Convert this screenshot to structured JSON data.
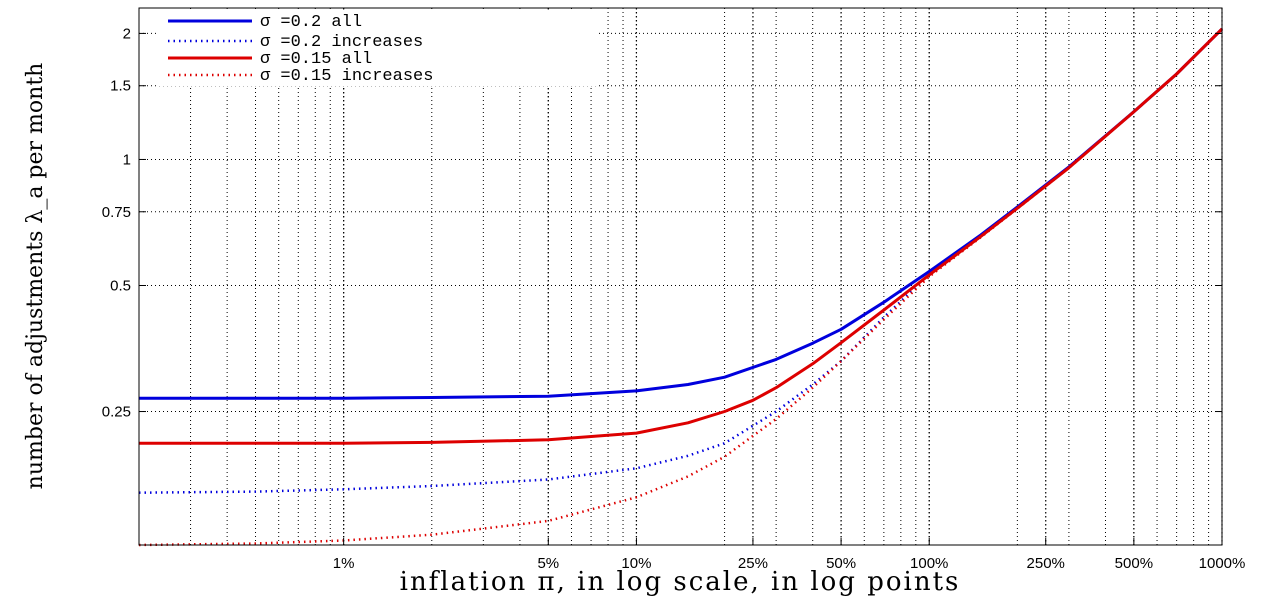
{
  "chart_data": {
    "type": "line",
    "title": "",
    "xlabel": "inflation π, in log scale, in log points",
    "ylabel": "number of adjustments λ_a per month",
    "xscale": "log",
    "yscale": "log",
    "xlim": [
      0.002,
      10
    ],
    "ylim": [
      0.12,
      2.3
    ],
    "grid": true,
    "legend_position": "top-left",
    "x_ticks": [
      {
        "value": 0.01,
        "label": "1%"
      },
      {
        "value": 0.05,
        "label": "5%"
      },
      {
        "value": 0.1,
        "label": "10%"
      },
      {
        "value": 0.25,
        "label": "25%"
      },
      {
        "value": 0.5,
        "label": "50%"
      },
      {
        "value": 1,
        "label": "100%"
      },
      {
        "value": 2.5,
        "label": "250%"
      },
      {
        "value": 5,
        "label": "500%"
      },
      {
        "value": 10,
        "label": "1000%"
      }
    ],
    "y_ticks": [
      {
        "value": 0.25,
        "label": "0.25"
      },
      {
        "value": 0.5,
        "label": "0.5"
      },
      {
        "value": 0.75,
        "label": "0.75"
      },
      {
        "value": 1,
        "label": "1"
      },
      {
        "value": 1.5,
        "label": "1.5"
      },
      {
        "value": 2,
        "label": "2"
      }
    ],
    "series": [
      {
        "name": "σ =0.2 all",
        "color": "#0000dd",
        "style": "solid",
        "x": [
          0.002,
          0.005,
          0.01,
          0.02,
          0.05,
          0.1,
          0.15,
          0.2,
          0.3,
          0.4,
          0.5,
          0.7,
          1,
          1.5,
          2,
          3,
          5,
          7,
          10
        ],
        "y": [
          0.269,
          0.269,
          0.269,
          0.27,
          0.272,
          0.28,
          0.29,
          0.302,
          0.333,
          0.364,
          0.393,
          0.456,
          0.54,
          0.66,
          0.77,
          0.96,
          1.3,
          1.6,
          2.05
        ]
      },
      {
        "name": "σ =0.2 increases",
        "color": "#0000dd",
        "style": "dotted",
        "x": [
          0.002,
          0.005,
          0.01,
          0.02,
          0.05,
          0.1,
          0.15,
          0.2,
          0.3,
          0.4,
          0.5,
          0.7,
          1,
          1.5,
          2,
          3,
          5,
          7,
          10
        ],
        "y": [
          0.16,
          0.161,
          0.163,
          0.166,
          0.172,
          0.183,
          0.196,
          0.21,
          0.25,
          0.29,
          0.33,
          0.42,
          0.53,
          0.655,
          0.765,
          0.955,
          1.3,
          1.6,
          2.05
        ]
      },
      {
        "name": "σ =0.15 all",
        "color": "#dd0000",
        "style": "solid",
        "x": [
          0.002,
          0.005,
          0.01,
          0.02,
          0.05,
          0.1,
          0.15,
          0.2,
          0.25,
          0.3,
          0.4,
          0.5,
          0.7,
          1,
          1.5,
          2,
          3,
          5,
          7,
          10
        ],
        "y": [
          0.21,
          0.21,
          0.21,
          0.211,
          0.214,
          0.222,
          0.235,
          0.25,
          0.266,
          0.285,
          0.325,
          0.365,
          0.437,
          0.53,
          0.655,
          0.765,
          0.955,
          1.3,
          1.6,
          2.05
        ]
      },
      {
        "name": "σ =0.15 increases",
        "color": "#dd0000",
        "style": "dotted",
        "x": [
          0.002,
          0.005,
          0.01,
          0.02,
          0.05,
          0.1,
          0.15,
          0.2,
          0.3,
          0.4,
          0.5,
          0.7,
          1,
          1.5,
          2,
          3,
          5,
          7,
          10
        ],
        "y": [
          0.12,
          0.121,
          0.123,
          0.127,
          0.137,
          0.156,
          0.175,
          0.195,
          0.24,
          0.285,
          0.33,
          0.415,
          0.525,
          0.652,
          0.763,
          0.955,
          1.3,
          1.6,
          2.05
        ]
      }
    ]
  }
}
